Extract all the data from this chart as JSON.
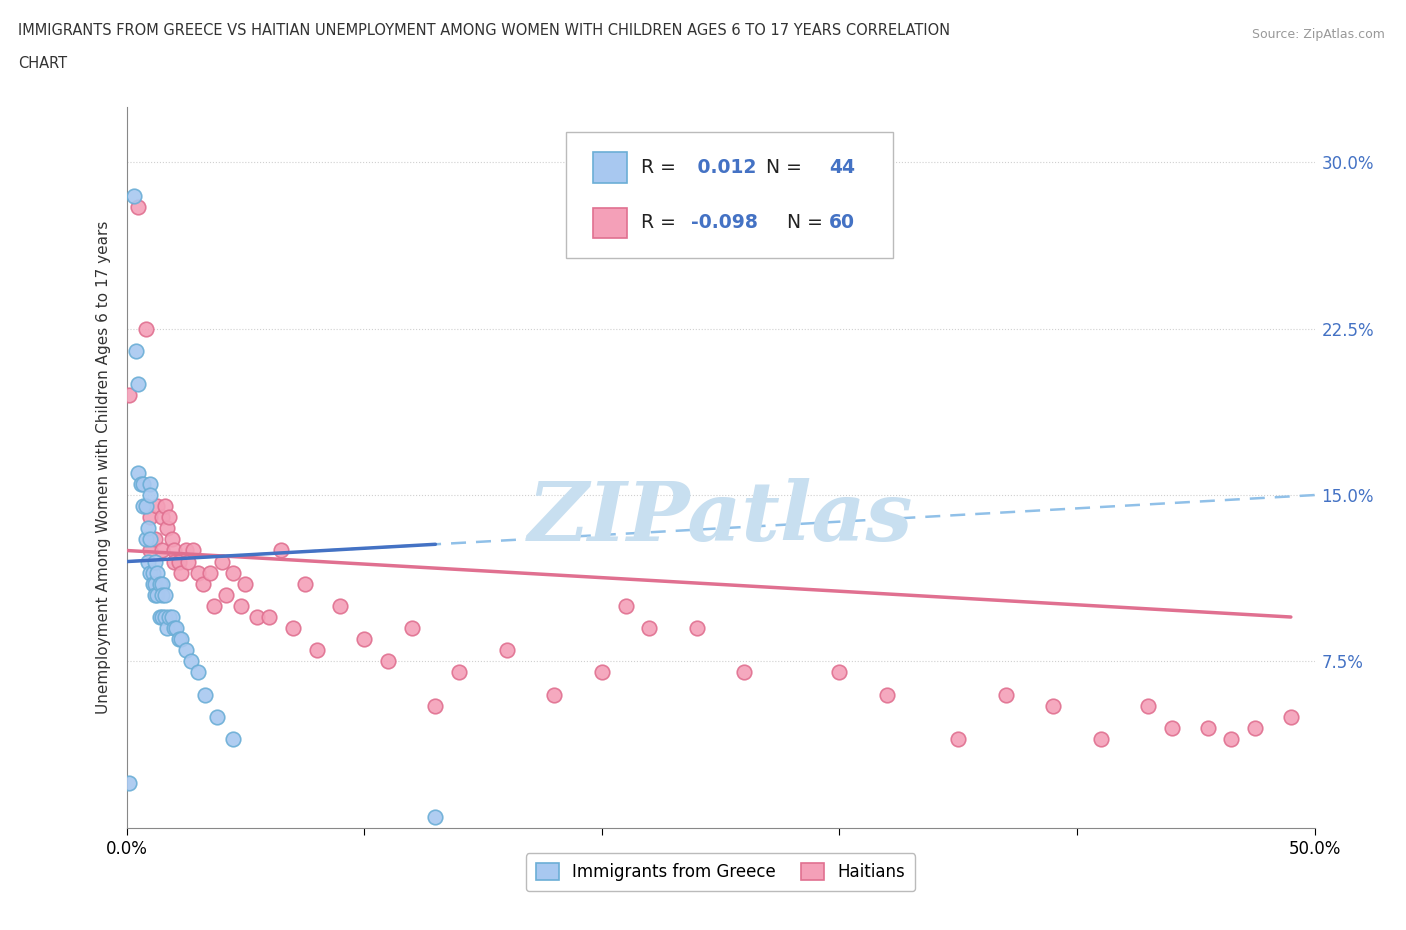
{
  "title_line1": "IMMIGRANTS FROM GREECE VS HAITIAN UNEMPLOYMENT AMONG WOMEN WITH CHILDREN AGES 6 TO 17 YEARS CORRELATION",
  "title_line2": "CHART",
  "source": "Source: ZipAtlas.com",
  "ylabel": "Unemployment Among Women with Children Ages 6 to 17 years",
  "xlim": [
    0.0,
    0.5
  ],
  "ylim": [
    0.0,
    0.325
  ],
  "yticks": [
    0.0,
    0.075,
    0.15,
    0.225,
    0.3
  ],
  "ytick_labels": [
    "",
    "7.5%",
    "15.0%",
    "22.5%",
    "30.0%"
  ],
  "xticks": [
    0.0,
    0.1,
    0.2,
    0.3,
    0.4,
    0.5
  ],
  "xtick_labels": [
    "0.0%",
    "",
    "",
    "",
    "",
    "50.0%"
  ],
  "greece_R": 0.012,
  "greece_N": 44,
  "haiti_R": -0.098,
  "haiti_N": 60,
  "greece_color": "#a8c8f0",
  "greece_edge": "#6baed6",
  "haiti_color": "#f4a0b8",
  "haiti_edge": "#e07090",
  "greece_trend_color": "#4472c4",
  "haiti_trend_color": "#e07090",
  "dashed_color": "#90c0e8",
  "watermark_color": "#c8dff0",
  "background_color": "#ffffff",
  "greece_x": [
    0.001,
    0.003,
    0.004,
    0.005,
    0.005,
    0.006,
    0.007,
    0.007,
    0.008,
    0.008,
    0.009,
    0.009,
    0.01,
    0.01,
    0.01,
    0.01,
    0.011,
    0.011,
    0.012,
    0.012,
    0.012,
    0.013,
    0.013,
    0.014,
    0.014,
    0.015,
    0.015,
    0.015,
    0.016,
    0.016,
    0.017,
    0.018,
    0.019,
    0.02,
    0.021,
    0.022,
    0.023,
    0.025,
    0.027,
    0.03,
    0.033,
    0.038,
    0.045,
    0.13
  ],
  "greece_y": [
    0.02,
    0.285,
    0.215,
    0.2,
    0.16,
    0.155,
    0.155,
    0.145,
    0.145,
    0.13,
    0.135,
    0.12,
    0.155,
    0.15,
    0.13,
    0.115,
    0.115,
    0.11,
    0.12,
    0.11,
    0.105,
    0.115,
    0.105,
    0.11,
    0.095,
    0.11,
    0.105,
    0.095,
    0.105,
    0.095,
    0.09,
    0.095,
    0.095,
    0.09,
    0.09,
    0.085,
    0.085,
    0.08,
    0.075,
    0.07,
    0.06,
    0.05,
    0.04,
    0.005
  ],
  "haiti_x": [
    0.001,
    0.005,
    0.008,
    0.01,
    0.01,
    0.012,
    0.013,
    0.015,
    0.015,
    0.016,
    0.017,
    0.018,
    0.019,
    0.02,
    0.02,
    0.022,
    0.023,
    0.025,
    0.026,
    0.028,
    0.03,
    0.032,
    0.035,
    0.037,
    0.04,
    0.042,
    0.045,
    0.048,
    0.05,
    0.055,
    0.06,
    0.065,
    0.07,
    0.075,
    0.08,
    0.09,
    0.1,
    0.11,
    0.12,
    0.13,
    0.14,
    0.16,
    0.18,
    0.2,
    0.21,
    0.22,
    0.24,
    0.26,
    0.3,
    0.32,
    0.35,
    0.37,
    0.39,
    0.41,
    0.43,
    0.44,
    0.455,
    0.465,
    0.475,
    0.49
  ],
  "haiti_y": [
    0.195,
    0.28,
    0.225,
    0.14,
    0.125,
    0.13,
    0.145,
    0.14,
    0.125,
    0.145,
    0.135,
    0.14,
    0.13,
    0.125,
    0.12,
    0.12,
    0.115,
    0.125,
    0.12,
    0.125,
    0.115,
    0.11,
    0.115,
    0.1,
    0.12,
    0.105,
    0.115,
    0.1,
    0.11,
    0.095,
    0.095,
    0.125,
    0.09,
    0.11,
    0.08,
    0.1,
    0.085,
    0.075,
    0.09,
    0.055,
    0.07,
    0.08,
    0.06,
    0.07,
    0.1,
    0.09,
    0.09,
    0.07,
    0.07,
    0.06,
    0.04,
    0.06,
    0.055,
    0.04,
    0.055,
    0.045,
    0.045,
    0.04,
    0.045,
    0.05
  ]
}
